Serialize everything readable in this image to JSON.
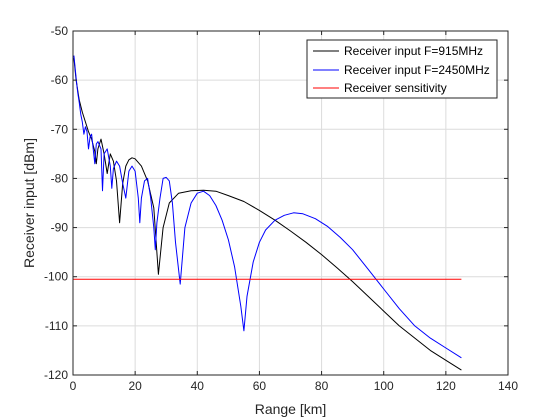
{
  "chart_data": {
    "type": "line",
    "title": "",
    "xlabel": "Range [km]",
    "ylabel": "Receiver input [dBm]",
    "xlim": [
      0,
      140
    ],
    "ylim": [
      -120,
      -50
    ],
    "xticks": [
      "0",
      "20",
      "40",
      "60",
      "80",
      "100",
      "120",
      "140"
    ],
    "yticks": [
      "-120",
      "-110",
      "-100",
      "-90",
      "-80",
      "-70",
      "-60",
      "-50"
    ],
    "grid": true,
    "legend_position": "top-right",
    "series": [
      {
        "name": "Receiver input F=915MHz",
        "color": "#000000",
        "points": [
          [
            0.3,
            -55.5
          ],
          [
            1,
            -60
          ],
          [
            2,
            -64
          ],
          [
            3,
            -66.5
          ],
          [
            4,
            -68.5
          ],
          [
            5,
            -70.5
          ],
          [
            6,
            -72
          ],
          [
            7,
            -74.5
          ],
          [
            7.5,
            -77
          ],
          [
            8,
            -74
          ],
          [
            9,
            -72
          ],
          [
            10,
            -75
          ],
          [
            11,
            -79
          ],
          [
            12,
            -75
          ],
          [
            13,
            -76.5
          ],
          [
            14,
            -80.5
          ],
          [
            15,
            -89
          ],
          [
            16,
            -81
          ],
          [
            17,
            -77.5
          ],
          [
            18,
            -76.2
          ],
          [
            19,
            -75.8
          ],
          [
            20,
            -76
          ],
          [
            22,
            -77.5
          ],
          [
            24,
            -80.5
          ],
          [
            26,
            -86
          ],
          [
            27.5,
            -99.5
          ],
          [
            29,
            -90
          ],
          [
            31,
            -85
          ],
          [
            34,
            -83
          ],
          [
            38,
            -82.5
          ],
          [
            42,
            -82.4
          ],
          [
            46,
            -82.6
          ],
          [
            50,
            -83.5
          ],
          [
            55,
            -84.7
          ],
          [
            60,
            -86.5
          ],
          [
            65,
            -88.5
          ],
          [
            70,
            -90.7
          ],
          [
            75,
            -93
          ],
          [
            80,
            -95.5
          ],
          [
            85,
            -98.2
          ],
          [
            90,
            -101
          ],
          [
            95,
            -104
          ],
          [
            100,
            -107
          ],
          [
            105,
            -110
          ],
          [
            110,
            -112.5
          ],
          [
            115,
            -115
          ],
          [
            120,
            -117
          ],
          [
            125,
            -119
          ]
        ]
      },
      {
        "name": "Receiver input F=2450MHz",
        "color": "#0000ff",
        "points": [
          [
            0.3,
            -55
          ],
          [
            1,
            -59.5
          ],
          [
            1.5,
            -62.5
          ],
          [
            2,
            -64.5
          ],
          [
            2.5,
            -67
          ],
          [
            3,
            -68.5
          ],
          [
            3.5,
            -71
          ],
          [
            4,
            -69.5
          ],
          [
            4.5,
            -70.5
          ],
          [
            5,
            -74
          ],
          [
            5.5,
            -71.5
          ],
          [
            6,
            -71
          ],
          [
            6.5,
            -74
          ],
          [
            7,
            -77
          ],
          [
            7.5,
            -73
          ],
          [
            8,
            -72.5
          ],
          [
            9,
            -74
          ],
          [
            9.5,
            -82.5
          ],
          [
            10,
            -75
          ],
          [
            11,
            -74
          ],
          [
            12,
            -77.5
          ],
          [
            12.5,
            -82
          ],
          [
            13,
            -78
          ],
          [
            14,
            -76.5
          ],
          [
            15,
            -77.5
          ],
          [
            16,
            -81
          ],
          [
            17,
            -84
          ],
          [
            18,
            -78.5
          ],
          [
            19,
            -77.5
          ],
          [
            20,
            -78.5
          ],
          [
            21,
            -84
          ],
          [
            21.5,
            -89
          ],
          [
            22,
            -84
          ],
          [
            23,
            -80.5
          ],
          [
            24,
            -80
          ],
          [
            25,
            -84
          ],
          [
            26,
            -90
          ],
          [
            26.5,
            -94.5
          ],
          [
            27,
            -89
          ],
          [
            28,
            -84
          ],
          [
            29,
            -80
          ],
          [
            30,
            -79.8
          ],
          [
            31,
            -80.5
          ],
          [
            32,
            -85
          ],
          [
            33,
            -93
          ],
          [
            34.5,
            -101.5
          ],
          [
            36,
            -90
          ],
          [
            38,
            -85
          ],
          [
            40,
            -83
          ],
          [
            42,
            -82.6
          ],
          [
            44,
            -83.5
          ],
          [
            46,
            -85.5
          ],
          [
            48,
            -88.5
          ],
          [
            50,
            -92.5
          ],
          [
            52,
            -98
          ],
          [
            54,
            -106
          ],
          [
            55,
            -111
          ],
          [
            56,
            -104
          ],
          [
            58,
            -97
          ],
          [
            60,
            -93
          ],
          [
            62,
            -90.5
          ],
          [
            65,
            -88.5
          ],
          [
            68,
            -87.5
          ],
          [
            71,
            -87
          ],
          [
            74,
            -87.2
          ],
          [
            78,
            -88.2
          ],
          [
            82,
            -89.8
          ],
          [
            86,
            -92
          ],
          [
            90,
            -94.5
          ],
          [
            95,
            -98.5
          ],
          [
            100,
            -102.5
          ],
          [
            105,
            -106.5
          ],
          [
            110,
            -110
          ],
          [
            115,
            -112.5
          ],
          [
            120,
            -114.5
          ],
          [
            125,
            -116.5
          ]
        ]
      },
      {
        "name": "Receiver sensitivity",
        "color": "#ff0000",
        "points": [
          [
            0,
            -100.5
          ],
          [
            125,
            -100.5
          ]
        ]
      }
    ]
  }
}
